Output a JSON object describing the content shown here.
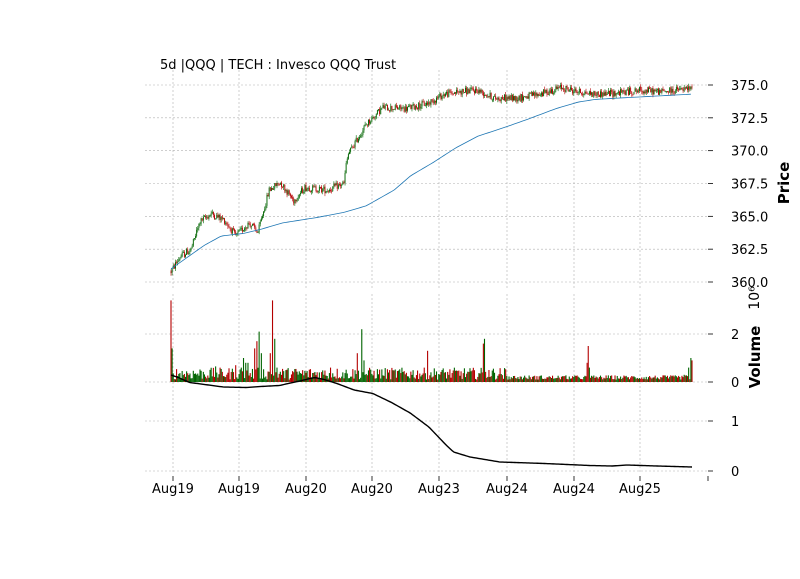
{
  "chart_data": {
    "type": "candlestick",
    "title": "5d |QQQ | TECH : Invesco QQQ Trust",
    "colors": {
      "up": "#006400",
      "down": "#b40000",
      "ma_line": "#1f77b4",
      "lower_line": "#000000",
      "grid": "#b0b0b0"
    },
    "grid": true,
    "x_tick_labels": [
      "Aug19",
      "Aug19",
      "Aug20",
      "Aug20",
      "Aug23",
      "Aug24",
      "Aug24",
      "Aug25",
      ""
    ],
    "panels": {
      "price": {
        "ylabel": "Price",
        "ylim": [
          359.8,
          376.0
        ],
        "yticks": [
          "360.0",
          "362.5",
          "365.0",
          "367.5",
          "370.0",
          "372.5",
          "375.0"
        ],
        "price_path_anchors": [
          [
            0,
            360.8
          ],
          [
            8,
            361.9
          ],
          [
            18,
            362.5
          ],
          [
            26,
            364.6
          ],
          [
            36,
            365.2
          ],
          [
            48,
            364.7
          ],
          [
            58,
            363.5
          ],
          [
            70,
            364.5
          ],
          [
            78,
            363.8
          ],
          [
            88,
            367.0
          ],
          [
            98,
            367.6
          ],
          [
            110,
            366.2
          ],
          [
            120,
            367.2
          ],
          [
            140,
            367.0
          ],
          [
            155,
            367.5
          ],
          [
            158,
            369.6
          ],
          [
            175,
            372.0
          ],
          [
            190,
            373.3
          ],
          [
            210,
            373.2
          ],
          [
            230,
            373.6
          ],
          [
            245,
            374.3
          ],
          [
            260,
            374.5
          ],
          [
            275,
            374.6
          ],
          [
            290,
            374.0
          ],
          [
            310,
            374.0
          ],
          [
            330,
            374.3
          ],
          [
            350,
            374.8
          ],
          [
            365,
            374.5
          ],
          [
            380,
            374.3
          ],
          [
            400,
            374.4
          ],
          [
            420,
            374.6
          ],
          [
            440,
            374.5
          ],
          [
            466,
            374.7
          ]
        ],
        "moving_average": [
          [
            0,
            361.0
          ],
          [
            30,
            362.8
          ],
          [
            45,
            363.5
          ],
          [
            65,
            363.7
          ],
          [
            80,
            364.0
          ],
          [
            100,
            364.5
          ],
          [
            130,
            364.9
          ],
          [
            155,
            365.3
          ],
          [
            175,
            365.8
          ],
          [
            200,
            367.0
          ],
          [
            215,
            368.1
          ],
          [
            235,
            369.1
          ],
          [
            255,
            370.2
          ],
          [
            275,
            371.1
          ],
          [
            300,
            371.8
          ],
          [
            320,
            372.4
          ],
          [
            345,
            373.2
          ],
          [
            365,
            373.7
          ],
          [
            380,
            373.9
          ],
          [
            400,
            374.0
          ],
          [
            466,
            374.3
          ]
        ]
      },
      "volume": {
        "ylabel": "Volume",
        "offset_label": "10⁶",
        "ylim": [
          0,
          3.5
        ],
        "yticks": [
          "0",
          "2"
        ],
        "baseline_vol_range": [
          0.1,
          0.6
        ],
        "spikes": [
          [
            0,
            3.4
          ],
          [
            1,
            1.4
          ],
          [
            40,
            0.65
          ],
          [
            58,
            0.7
          ],
          [
            63,
            0.6
          ],
          [
            65,
            1.0
          ],
          [
            67,
            0.8
          ],
          [
            69,
            0.8
          ],
          [
            75,
            1.4
          ],
          [
            77,
            1.7
          ],
          [
            79,
            2.1
          ],
          [
            81,
            1.2
          ],
          [
            89,
            1.2
          ],
          [
            91,
            3.4
          ],
          [
            93,
            1.8
          ],
          [
            95,
            0.6
          ],
          [
            143,
            0.6
          ],
          [
            167,
            1.2
          ],
          [
            171,
            2.2
          ],
          [
            173,
            0.9
          ],
          [
            230,
            1.3
          ],
          [
            280,
            1.6
          ],
          [
            281,
            1.8
          ],
          [
            285,
            0.5
          ],
          [
            373,
            0.8
          ],
          [
            374,
            1.5
          ],
          [
            375,
            0.6
          ],
          [
            460,
            0.3
          ],
          [
            464,
            0.6
          ],
          [
            466,
            1.0
          ],
          [
            467,
            0.9
          ]
        ]
      },
      "lower": {
        "yticks": [
          "0",
          "1"
        ],
        "ylim": [
          0,
          2.0
        ],
        "line": [
          [
            0,
            1.92
          ],
          [
            8,
            1.88
          ],
          [
            25,
            1.77
          ],
          [
            50,
            1.72
          ],
          [
            70,
            1.68
          ],
          [
            100,
            1.67
          ],
          [
            120,
            1.69
          ],
          [
            145,
            1.71
          ],
          [
            160,
            1.76
          ],
          [
            175,
            1.81
          ],
          [
            192,
            1.87
          ],
          [
            205,
            1.83
          ],
          [
            222,
            1.75
          ],
          [
            245,
            1.62
          ],
          [
            270,
            1.55
          ],
          [
            295,
            1.37
          ],
          [
            320,
            1.16
          ],
          [
            345,
            0.88
          ],
          [
            368,
            0.52
          ],
          [
            378,
            0.38
          ],
          [
            400,
            0.28
          ],
          [
            440,
            0.18
          ],
          [
            500,
            0.15
          ],
          [
            560,
            0.11
          ],
          [
            590,
            0.1
          ],
          [
            610,
            0.12
          ],
          [
            650,
            0.1
          ],
          [
            697,
            0.08
          ]
        ]
      }
    }
  }
}
